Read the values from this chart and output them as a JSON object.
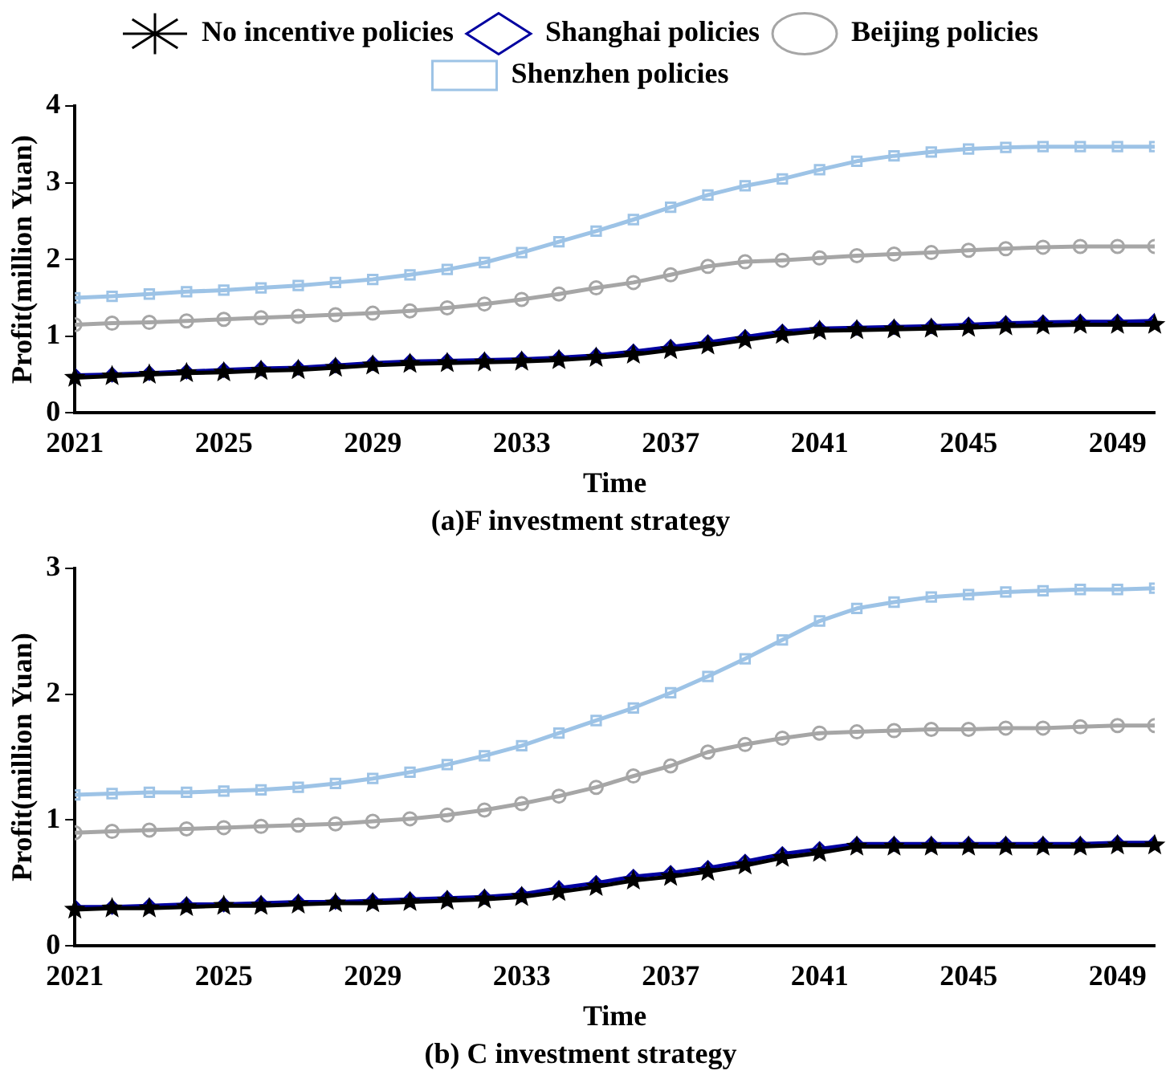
{
  "chart_data": [
    {
      "type": "line",
      "title": "(a)F investment strategy",
      "xlabel": "Time",
      "ylabel": "Profit(million Yuan)",
      "x": [
        2021,
        2022,
        2023,
        2024,
        2025,
        2026,
        2027,
        2028,
        2029,
        2030,
        2031,
        2032,
        2033,
        2034,
        2035,
        2036,
        2037,
        2038,
        2039,
        2040,
        2041,
        2042,
        2043,
        2044,
        2045,
        2046,
        2047,
        2048,
        2049,
        2050
      ],
      "xlim": [
        2021,
        2050
      ],
      "xticks": [
        2021,
        2025,
        2029,
        2033,
        2037,
        2041,
        2045,
        2049
      ],
      "ylim": [
        0,
        4
      ],
      "yticks": [
        0,
        1,
        2,
        3,
        4
      ],
      "grid": false,
      "legend": "top",
      "series": [
        {
          "name": "No incentive policies",
          "color": "#000000",
          "marker": "star",
          "values": [
            0.46,
            0.48,
            0.5,
            0.52,
            0.53,
            0.55,
            0.56,
            0.59,
            0.62,
            0.64,
            0.65,
            0.66,
            0.67,
            0.69,
            0.72,
            0.76,
            0.82,
            0.88,
            0.95,
            1.02,
            1.07,
            1.08,
            1.09,
            1.1,
            1.11,
            1.13,
            1.14,
            1.15,
            1.15,
            1.15
          ]
        },
        {
          "name": "Shanghai policies",
          "color": "#0000a0",
          "marker": "diamond",
          "values": [
            0.49,
            0.5,
            0.52,
            0.54,
            0.56,
            0.58,
            0.59,
            0.62,
            0.65,
            0.67,
            0.68,
            0.69,
            0.7,
            0.72,
            0.75,
            0.8,
            0.86,
            0.92,
            0.99,
            1.06,
            1.1,
            1.11,
            1.12,
            1.13,
            1.15,
            1.17,
            1.18,
            1.19,
            1.19,
            1.2
          ]
        },
        {
          "name": "Beijing policies",
          "color": "#a6a6a6",
          "marker": "circle",
          "values": [
            1.15,
            1.17,
            1.18,
            1.2,
            1.22,
            1.24,
            1.26,
            1.28,
            1.3,
            1.33,
            1.37,
            1.42,
            1.48,
            1.55,
            1.63,
            1.7,
            1.8,
            1.91,
            1.97,
            1.99,
            2.02,
            2.05,
            2.07,
            2.09,
            2.12,
            2.14,
            2.16,
            2.17,
            2.17,
            2.17
          ]
        },
        {
          "name": "Shenzhen policies",
          "color": "#9dc3e6",
          "marker": "square",
          "values": [
            1.5,
            1.52,
            1.55,
            1.58,
            1.6,
            1.63,
            1.66,
            1.7,
            1.74,
            1.8,
            1.87,
            1.96,
            2.09,
            2.23,
            2.37,
            2.52,
            2.68,
            2.84,
            2.96,
            3.05,
            3.17,
            3.28,
            3.35,
            3.4,
            3.44,
            3.46,
            3.47,
            3.47,
            3.47,
            3.47
          ]
        }
      ]
    },
    {
      "type": "line",
      "title": "(b) C investment strategy",
      "xlabel": "Time",
      "ylabel": "Profit(million Yuan)",
      "x": [
        2021,
        2022,
        2023,
        2024,
        2025,
        2026,
        2027,
        2028,
        2029,
        2030,
        2031,
        2032,
        2033,
        2034,
        2035,
        2036,
        2037,
        2038,
        2039,
        2040,
        2041,
        2042,
        2043,
        2044,
        2045,
        2046,
        2047,
        2048,
        2049,
        2050
      ],
      "xlim": [
        2021,
        2050
      ],
      "xticks": [
        2021,
        2025,
        2029,
        2033,
        2037,
        2041,
        2045,
        2049
      ],
      "ylim": [
        0,
        3
      ],
      "yticks": [
        0,
        1,
        2,
        3
      ],
      "grid": false,
      "legend": false,
      "series": [
        {
          "color": "#000000",
          "marker": "star",
          "values": [
            0.29,
            0.3,
            0.3,
            0.31,
            0.32,
            0.32,
            0.33,
            0.34,
            0.34,
            0.35,
            0.36,
            0.37,
            0.39,
            0.43,
            0.47,
            0.52,
            0.55,
            0.59,
            0.64,
            0.7,
            0.74,
            0.79,
            0.79,
            0.79,
            0.79,
            0.79,
            0.79,
            0.79,
            0.8,
            0.8
          ]
        },
        {
          "color": "#0000a0",
          "marker": "diamond",
          "values": [
            0.31,
            0.31,
            0.32,
            0.33,
            0.33,
            0.34,
            0.35,
            0.35,
            0.36,
            0.37,
            0.38,
            0.39,
            0.41,
            0.46,
            0.5,
            0.55,
            0.58,
            0.62,
            0.67,
            0.73,
            0.77,
            0.81,
            0.81,
            0.81,
            0.81,
            0.81,
            0.81,
            0.81,
            0.82,
            0.82
          ]
        },
        {
          "color": "#a6a6a6",
          "marker": "circle",
          "values": [
            0.9,
            0.91,
            0.92,
            0.93,
            0.94,
            0.95,
            0.96,
            0.97,
            0.99,
            1.01,
            1.04,
            1.08,
            1.13,
            1.19,
            1.26,
            1.35,
            1.43,
            1.54,
            1.6,
            1.65,
            1.69,
            1.7,
            1.71,
            1.72,
            1.72,
            1.73,
            1.73,
            1.74,
            1.75,
            1.75
          ]
        },
        {
          "color": "#9dc3e6",
          "marker": "square",
          "values": [
            1.2,
            1.21,
            1.22,
            1.22,
            1.23,
            1.24,
            1.26,
            1.29,
            1.33,
            1.38,
            1.44,
            1.51,
            1.59,
            1.69,
            1.79,
            1.89,
            2.01,
            2.14,
            2.28,
            2.43,
            2.58,
            2.68,
            2.73,
            2.77,
            2.79,
            2.81,
            2.82,
            2.83,
            2.83,
            2.84
          ]
        }
      ]
    }
  ]
}
